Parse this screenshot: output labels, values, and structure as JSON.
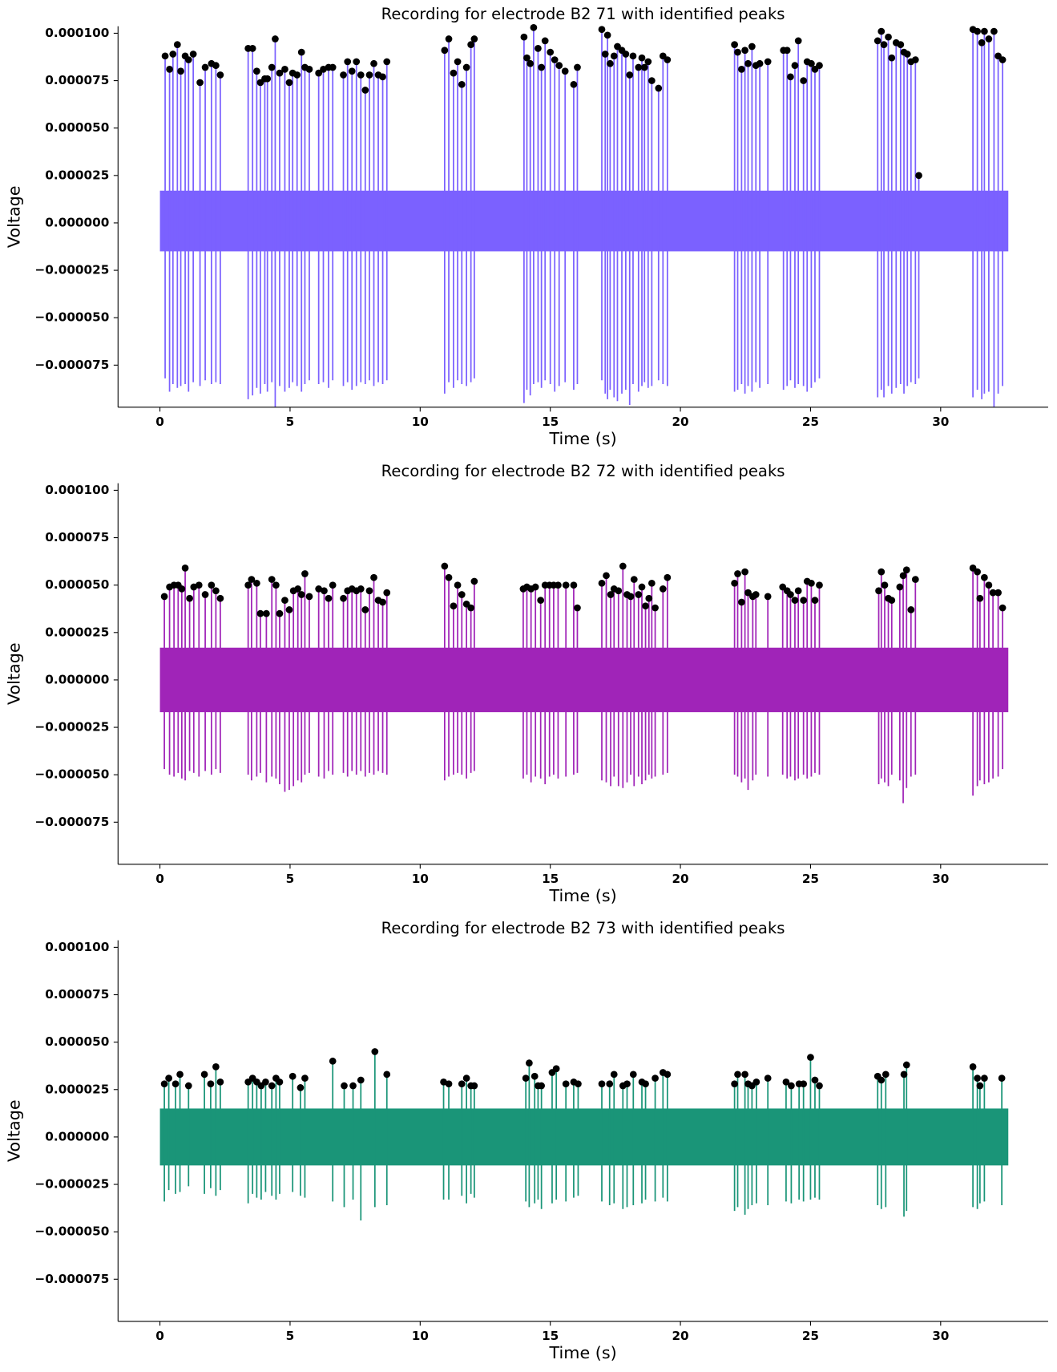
{
  "chart_data": [
    {
      "type": "line",
      "title": "Recording for electrode B2 71 with identified peaks",
      "xlabel": "Time (s)",
      "ylabel": "Voltage",
      "color": "#7b61ff",
      "marker_color": "#000000",
      "xlim": [
        -1.61,
        34.13
      ],
      "ylim": [
        -9.72e-05,
        0.0001037
      ],
      "xticks": [
        0,
        5,
        10,
        15,
        20,
        25,
        30
      ],
      "yticks": [
        {
          "value": -7.5e-05,
          "label": "−0.000075"
        },
        {
          "value": -5e-05,
          "label": "−0.000050"
        },
        {
          "value": -2.5e-05,
          "label": "−0.000025"
        },
        {
          "value": 0,
          "label": "0.000000"
        },
        {
          "value": 2.5e-05,
          "label": "0.000025"
        },
        {
          "value": 5e-05,
          "label": "0.000050"
        },
        {
          "value": 7.5e-05,
          "label": "0.000075"
        },
        {
          "value": 0.0001,
          "label": "0.000100"
        }
      ],
      "time_span": [
        0,
        32.6
      ],
      "noise_range": [
        -1.5e-05,
        1.7e-05
      ],
      "x": [
        0.2,
        0.37,
        0.5,
        0.67,
        0.8,
        0.97,
        1.1,
        1.28,
        1.54,
        1.74,
        1.98,
        2.15,
        2.32,
        3.39,
        3.56,
        3.72,
        3.86,
        4.03,
        4.13,
        4.3,
        4.43,
        4.6,
        4.8,
        4.97,
        5.1,
        5.27,
        5.44,
        5.57,
        5.74,
        6.1,
        6.28,
        6.48,
        6.64,
        7.05,
        7.21,
        7.38,
        7.55,
        7.72,
        7.89,
        8.05,
        8.22,
        8.39,
        8.56,
        8.72,
        10.94,
        11.1,
        11.28,
        11.44,
        11.6,
        11.78,
        11.95,
        12.08,
        13.99,
        14.1,
        14.23,
        14.36,
        14.53,
        14.66,
        14.8,
        15.0,
        15.17,
        15.34,
        15.57,
        15.9,
        16.04,
        16.98,
        17.11,
        17.2,
        17.3,
        17.45,
        17.58,
        17.75,
        17.9,
        18.05,
        18.18,
        18.39,
        18.52,
        18.62,
        18.76,
        18.9,
        19.16,
        19.33,
        19.5,
        22.08,
        22.2,
        22.35,
        22.48,
        22.6,
        22.75,
        22.9,
        23.05,
        23.36,
        23.96,
        24.1,
        24.23,
        24.4,
        24.53,
        24.73,
        24.87,
        25.03,
        25.17,
        25.34,
        27.58,
        27.72,
        27.82,
        27.99,
        28.12,
        28.29,
        28.46,
        28.59,
        28.72,
        28.86,
        29.03,
        29.16,
        31.24,
        31.41,
        31.58,
        31.68,
        31.85,
        32.05,
        32.21,
        32.38
      ],
      "values": [
        8.8e-05,
        8.1e-05,
        8.9e-05,
        9.4e-05,
        8e-05,
        8.8e-05,
        8.6e-05,
        8.9e-05,
        7.4e-05,
        8.2e-05,
        8.4e-05,
        8.3e-05,
        7.8e-05,
        9.2e-05,
        9.2e-05,
        8e-05,
        7.4e-05,
        7.6e-05,
        7.6e-05,
        8.2e-05,
        9.7e-05,
        7.9e-05,
        8.1e-05,
        7.4e-05,
        7.9e-05,
        7.8e-05,
        9e-05,
        8.2e-05,
        8.1e-05,
        7.9e-05,
        8.1e-05,
        8.2e-05,
        8.2e-05,
        7.8e-05,
        8.5e-05,
        8e-05,
        8.5e-05,
        7.8e-05,
        7e-05,
        7.8e-05,
        8.4e-05,
        7.8e-05,
        7.7e-05,
        8.5e-05,
        9.1e-05,
        9.7e-05,
        7.9e-05,
        8.5e-05,
        7.3e-05,
        8.2e-05,
        9.4e-05,
        9.7e-05,
        9.8e-05,
        8.7e-05,
        8.4e-05,
        0.000103,
        9.2e-05,
        8.2e-05,
        9.6e-05,
        9e-05,
        8.6e-05,
        8.3e-05,
        8e-05,
        7.3e-05,
        8.2e-05,
        0.000102,
        8.9e-05,
        9.9e-05,
        8.4e-05,
        8.8e-05,
        9.3e-05,
        9.1e-05,
        8.9e-05,
        7.8e-05,
        8.8e-05,
        8.2e-05,
        8.7e-05,
        8.2e-05,
        8.5e-05,
        7.5e-05,
        7.1e-05,
        8.8e-05,
        8.6e-05,
        9.4e-05,
        9e-05,
        8.1e-05,
        9.1e-05,
        8.4e-05,
        9.3e-05,
        8.3e-05,
        8.4e-05,
        8.5e-05,
        9.1e-05,
        9.1e-05,
        7.7e-05,
        8.3e-05,
        9.6e-05,
        7.5e-05,
        8.5e-05,
        8.4e-05,
        8.1e-05,
        8.3e-05,
        9.6e-05,
        0.000101,
        9.4e-05,
        9.8e-05,
        8.7e-05,
        9.5e-05,
        9.4e-05,
        9e-05,
        8.9e-05,
        8.5e-05,
        8.6e-05,
        2.5e-05,
        0.000102,
        0.000101,
        9.5e-05,
        0.000101,
        9.7e-05,
        0.000101,
        8.8e-05,
        8.6e-05
      ],
      "troughs": [
        -8.2e-05,
        -8.9e-05,
        -8.5e-05,
        -8.7e-05,
        -8.6e-05,
        -8.5e-05,
        -8.9e-05,
        -8.4e-05,
        -8.6e-05,
        -8.3e-05,
        -8.5e-05,
        -8.4e-05,
        -8.5e-05,
        -9.3e-05,
        -9.1e-05,
        -8.7e-05,
        -9e-05,
        -8.5e-05,
        -8.9e-05,
        -8.4e-05,
        -9.7e-05,
        -8.6e-05,
        -8.9e-05,
        -8.7e-05,
        -8.4e-05,
        -8.6e-05,
        -8.9e-05,
        -8.5e-05,
        -8.3e-05,
        -8.5e-05,
        -8.4e-05,
        -8.7e-05,
        -8.3e-05,
        -8.6e-05,
        -8.4e-05,
        -8.8e-05,
        -8.6e-05,
        -8.4e-05,
        -8.5e-05,
        -8.3e-05,
        -8.6e-05,
        -8.4e-05,
        -8.5e-05,
        -8.3e-05,
        -9e-05,
        -8.4e-05,
        -8.7e-05,
        -8.3e-05,
        -8.5e-05,
        -8.6e-05,
        -8.4e-05,
        -8.2e-05,
        -9.5e-05,
        -8.8e-05,
        -9.1e-05,
        -8.5e-05,
        -8.4e-05,
        -8.7e-05,
        -8.3e-05,
        -8.5e-05,
        -8.9e-05,
        -8.6e-05,
        -8.4e-05,
        -8.8e-05,
        -8.5e-05,
        -8.3e-05,
        -9e-05,
        -9.3e-05,
        -8.8e-05,
        -9.2e-05,
        -9.4e-05,
        -9e-05,
        -8.8e-05,
        -9.6e-05,
        -8.5e-05,
        -8.9e-05,
        -8.6e-05,
        -8.4e-05,
        -8.7e-05,
        -8.6e-05,
        -8.3e-05,
        -8.5e-05,
        -8.6e-05,
        -8.9e-05,
        -8.8e-05,
        -8.5e-05,
        -9e-05,
        -8.6e-05,
        -8.9e-05,
        -8.4e-05,
        -8.7e-05,
        -8.5e-05,
        -8.8e-05,
        -8.6e-05,
        -8.3e-05,
        -8.7e-05,
        -8.5e-05,
        -8.6e-05,
        -8.9e-05,
        -8.7e-05,
        -8.4e-05,
        -8.2e-05,
        -9.2e-05,
        -8.8e-05,
        -9.2e-05,
        -8.6e-05,
        -9e-05,
        -8.7e-05,
        -8.5e-05,
        -9e-05,
        -8.6e-05,
        -8.4e-05,
        -8.5e-05,
        -8.2e-05,
        -9.2e-05,
        -8.8e-05,
        -9.3e-05,
        -9e-05,
        -8.9e-05,
        -9.7e-05,
        -9e-05,
        -8.6e-05
      ]
    },
    {
      "type": "line",
      "title": "Recording for electrode B2 72 with identified peaks",
      "xlabel": "Time (s)",
      "ylabel": "Voltage",
      "color": "#a024b8",
      "marker_color": "#000000",
      "xlim": [
        -1.61,
        34.13
      ],
      "ylim": [
        -9.72e-05,
        0.0001037
      ],
      "xticks": [
        0,
        5,
        10,
        15,
        20,
        25,
        30
      ],
      "yticks": [
        {
          "value": -7.5e-05,
          "label": "−0.000075"
        },
        {
          "value": -5e-05,
          "label": "−0.000050"
        },
        {
          "value": -2.5e-05,
          "label": "−0.000025"
        },
        {
          "value": 0,
          "label": "0.000000"
        },
        {
          "value": 2.5e-05,
          "label": "0.000025"
        },
        {
          "value": 5e-05,
          "label": "0.000050"
        },
        {
          "value": 7.5e-05,
          "label": "0.000075"
        },
        {
          "value": 0.0001,
          "label": "0.000100"
        }
      ],
      "time_span": [
        0,
        32.6
      ],
      "noise_range": [
        -1.7e-05,
        1.7e-05
      ],
      "x": [
        0.17,
        0.37,
        0.54,
        0.7,
        0.84,
        0.97,
        1.14,
        1.3,
        1.5,
        1.74,
        1.98,
        2.15,
        2.32,
        3.39,
        3.52,
        3.72,
        3.86,
        4.09,
        4.3,
        4.46,
        4.6,
        4.8,
        4.97,
        5.13,
        5.3,
        5.44,
        5.57,
        5.74,
        6.1,
        6.31,
        6.48,
        6.64,
        7.05,
        7.21,
        7.38,
        7.55,
        7.72,
        7.89,
        8.05,
        8.22,
        8.39,
        8.56,
        8.72,
        10.94,
        11.1,
        11.28,
        11.44,
        11.6,
        11.78,
        11.95,
        12.08,
        13.96,
        14.1,
        14.26,
        14.43,
        14.63,
        14.8,
        14.97,
        15.13,
        15.3,
        15.6,
        15.9,
        16.04,
        16.98,
        17.15,
        17.32,
        17.45,
        17.62,
        17.79,
        17.95,
        18.09,
        18.22,
        18.39,
        18.52,
        18.66,
        18.79,
        18.9,
        19.03,
        19.33,
        19.5,
        22.08,
        22.2,
        22.35,
        22.48,
        22.6,
        22.78,
        22.9,
        23.36,
        23.93,
        24.1,
        24.23,
        24.4,
        24.53,
        24.73,
        24.87,
        25.03,
        25.17,
        25.34,
        27.62,
        27.72,
        27.85,
        27.99,
        28.12,
        28.43,
        28.56,
        28.69,
        28.86,
        29.03,
        31.24,
        31.41,
        31.51,
        31.68,
        31.85,
        32.01,
        32.21,
        32.38
      ],
      "values": [
        4.4e-05,
        4.9e-05,
        5e-05,
        5e-05,
        4.8e-05,
        5.9e-05,
        4.3e-05,
        4.9e-05,
        5e-05,
        4.5e-05,
        5e-05,
        4.7e-05,
        4.3e-05,
        5e-05,
        5.3e-05,
        5.1e-05,
        3.5e-05,
        3.5e-05,
        5.3e-05,
        5e-05,
        3.5e-05,
        4.2e-05,
        3.7e-05,
        4.7e-05,
        4.8e-05,
        4.5e-05,
        5.6e-05,
        4.4e-05,
        4.8e-05,
        4.7e-05,
        4.3e-05,
        5e-05,
        4.3e-05,
        4.7e-05,
        4.8e-05,
        4.7e-05,
        4.8e-05,
        3.7e-05,
        4.7e-05,
        5.4e-05,
        4.2e-05,
        4.1e-05,
        4.6e-05,
        6e-05,
        5.4e-05,
        3.9e-05,
        5e-05,
        4.5e-05,
        4e-05,
        3.8e-05,
        5.2e-05,
        4.8e-05,
        4.9e-05,
        4.8e-05,
        4.9e-05,
        4.2e-05,
        5e-05,
        5e-05,
        5e-05,
        5e-05,
        5e-05,
        5e-05,
        3.8e-05,
        5.1e-05,
        5.5e-05,
        4.5e-05,
        4.8e-05,
        4.7e-05,
        6e-05,
        4.5e-05,
        4.4e-05,
        5.3e-05,
        4.5e-05,
        4.9e-05,
        3.9e-05,
        4.3e-05,
        5.1e-05,
        3.8e-05,
        4.8e-05,
        5.4e-05,
        5.1e-05,
        5.6e-05,
        4.1e-05,
        5.7e-05,
        4.6e-05,
        4.4e-05,
        4.5e-05,
        4.4e-05,
        4.9e-05,
        4.7e-05,
        4.5e-05,
        4.2e-05,
        4.7e-05,
        4.2e-05,
        5.2e-05,
        5.1e-05,
        4.2e-05,
        5e-05,
        4.7e-05,
        5.7e-05,
        5e-05,
        4.3e-05,
        4.2e-05,
        4.9e-05,
        5.5e-05,
        5.8e-05,
        3.7e-05,
        5.3e-05,
        5.9e-05,
        5.7e-05,
        4.3e-05,
        5.4e-05,
        5e-05,
        4.6e-05,
        4.6e-05,
        3.8e-05
      ],
      "troughs": [
        -4.7e-05,
        -5e-05,
        -5.1e-05,
        -4.9e-05,
        -5.2e-05,
        -5.3e-05,
        -4.8e-05,
        -4.9e-05,
        -5.1e-05,
        -4.8e-05,
        -5e-05,
        -4.7e-05,
        -4.9e-05,
        -5e-05,
        -5.3e-05,
        -5.1e-05,
        -4.9e-05,
        -5.4e-05,
        -5.1e-05,
        -5.2e-05,
        -5.5e-05,
        -5.9e-05,
        -5.8e-05,
        -5.6e-05,
        -5.3e-05,
        -5.4e-05,
        -5e-05,
        -4.9e-05,
        -5.1e-05,
        -5.2e-05,
        -4.8e-05,
        -5e-05,
        -4.9e-05,
        -5.1e-05,
        -4.8e-05,
        -5e-05,
        -4.8e-05,
        -5.1e-05,
        -4.9e-05,
        -5e-05,
        -4.8e-05,
        -4.9e-05,
        -5e-05,
        -5.3e-05,
        -5.1e-05,
        -5e-05,
        -4.9e-05,
        -5e-05,
        -5.2e-05,
        -4.9e-05,
        -4.8e-05,
        -5.2e-05,
        -5e-05,
        -5.4e-05,
        -5.1e-05,
        -5.2e-05,
        -5.5e-05,
        -5.1e-05,
        -5e-05,
        -5.2e-05,
        -5.1e-05,
        -5e-05,
        -4.9e-05,
        -5.3e-05,
        -5.4e-05,
        -5.6e-05,
        -5.1e-05,
        -5.6e-05,
        -5.7e-05,
        -5.4e-05,
        -5e-05,
        -5.6e-05,
        -5.1e-05,
        -5.5e-05,
        -5.3e-05,
        -5e-05,
        -5.2e-05,
        -5.1e-05,
        -5e-05,
        -4.9e-05,
        -5e-05,
        -5.1e-05,
        -5.4e-05,
        -5.2e-05,
        -5.8e-05,
        -5.3e-05,
        -5e-05,
        -5.1e-05,
        -5e-05,
        -5.2e-05,
        -5.1e-05,
        -5.3e-05,
        -5.2e-05,
        -5e-05,
        -5.2e-05,
        -5.1e-05,
        -4.9e-05,
        -5e-05,
        -5.5e-05,
        -5.2e-05,
        -5.4e-05,
        -5.6e-05,
        -5e-05,
        -5.3e-05,
        -6.5e-05,
        -5.7e-05,
        -5.1e-05,
        -5e-05,
        -6.1e-05,
        -5.6e-05,
        -5.3e-05,
        -5.5e-05,
        -5.4e-05,
        -5.2e-05,
        -5.1e-05,
        -4.7e-05
      ]
    },
    {
      "type": "line",
      "title": "Recording for electrode B2 73 with identified peaks",
      "xlabel": "Time (s)",
      "ylabel": "Voltage",
      "color": "#1a9578",
      "marker_color": "#000000",
      "xlim": [
        -1.61,
        34.13
      ],
      "ylim": [
        -9.72e-05,
        0.0001037
      ],
      "xticks": [
        0,
        5,
        10,
        15,
        20,
        25,
        30
      ],
      "yticks": [
        {
          "value": -7.5e-05,
          "label": "−0.000075"
        },
        {
          "value": -5e-05,
          "label": "−0.000050"
        },
        {
          "value": -2.5e-05,
          "label": "−0.000025"
        },
        {
          "value": 0,
          "label": "0.000000"
        },
        {
          "value": 2.5e-05,
          "label": "0.000025"
        },
        {
          "value": 5e-05,
          "label": "0.000050"
        },
        {
          "value": 7.5e-05,
          "label": "0.000075"
        },
        {
          "value": 0.0001,
          "label": "0.000100"
        }
      ],
      "time_span": [
        0,
        32.6
      ],
      "noise_range": [
        -1.5e-05,
        1.5e-05
      ],
      "x": [
        0.17,
        0.34,
        0.6,
        0.77,
        1.1,
        1.71,
        1.95,
        2.15,
        2.32,
        3.39,
        3.56,
        3.72,
        3.89,
        4.06,
        4.3,
        4.46,
        4.6,
        5.1,
        5.4,
        5.57,
        6.64,
        7.08,
        7.42,
        7.72,
        8.26,
        8.72,
        10.9,
        11.1,
        11.6,
        11.78,
        11.95,
        12.08,
        14.06,
        14.19,
        14.4,
        14.53,
        14.66,
        15.07,
        15.23,
        15.6,
        15.9,
        16.07,
        16.98,
        17.28,
        17.45,
        17.79,
        17.95,
        18.19,
        18.52,
        18.66,
        19.03,
        19.33,
        19.5,
        22.08,
        22.2,
        22.48,
        22.6,
        22.75,
        22.92,
        23.36,
        24.06,
        24.26,
        24.56,
        24.73,
        25.0,
        25.17,
        25.34,
        27.58,
        27.72,
        27.89,
        28.59,
        28.69,
        31.24,
        31.41,
        31.51,
        31.68,
        32.35
      ],
      "values": [
        2.8e-05,
        3.1e-05,
        2.8e-05,
        3.3e-05,
        2.7e-05,
        3.3e-05,
        2.8e-05,
        3.7e-05,
        2.9e-05,
        2.9e-05,
        3.1e-05,
        2.9e-05,
        2.7e-05,
        2.9e-05,
        2.7e-05,
        3.1e-05,
        2.9e-05,
        3.2e-05,
        2.6e-05,
        3.1e-05,
        4e-05,
        2.7e-05,
        2.7e-05,
        3e-05,
        4.5e-05,
        3.3e-05,
        2.9e-05,
        2.8e-05,
        2.8e-05,
        3.1e-05,
        2.7e-05,
        2.7e-05,
        3.1e-05,
        3.9e-05,
        3.2e-05,
        2.7e-05,
        2.7e-05,
        3.4e-05,
        3.6e-05,
        2.8e-05,
        2.9e-05,
        2.8e-05,
        2.8e-05,
        2.8e-05,
        3.3e-05,
        2.7e-05,
        2.8e-05,
        3.3e-05,
        2.9e-05,
        2.8e-05,
        3.1e-05,
        3.4e-05,
        3.3e-05,
        2.8e-05,
        3.3e-05,
        3.3e-05,
        2.8e-05,
        2.7e-05,
        2.9e-05,
        3.1e-05,
        2.9e-05,
        2.7e-05,
        2.8e-05,
        2.8e-05,
        4.2e-05,
        3e-05,
        2.7e-05,
        3.2e-05,
        3e-05,
        3.3e-05,
        3.3e-05,
        3.8e-05,
        3.7e-05,
        3.1e-05,
        2.7e-05,
        3.1e-05,
        3.1e-05
      ],
      "troughs": [
        -3.4e-05,
        -2.8e-05,
        -3e-05,
        -2.9e-05,
        -2.6e-05,
        -3e-05,
        -2.7e-05,
        -3.1e-05,
        -2.8e-05,
        -3.5e-05,
        -3e-05,
        -3.2e-05,
        -3.3e-05,
        -2.9e-05,
        -3.1e-05,
        -3.3e-05,
        -3e-05,
        -2.9e-05,
        -3.1e-05,
        -3.2e-05,
        -3.4e-05,
        -3.7e-05,
        -3.3e-05,
        -4.4e-05,
        -3.7e-05,
        -3.6e-05,
        -3.3e-05,
        -3.3e-05,
        -3.1e-05,
        -3.5e-05,
        -3e-05,
        -3.2e-05,
        -3.4e-05,
        -3.7e-05,
        -3.5e-05,
        -3.3e-05,
        -3.8e-05,
        -3.5e-05,
        -3.3e-05,
        -3.4e-05,
        -3.2e-05,
        -3.1e-05,
        -3.4e-05,
        -3.6e-05,
        -3.5e-05,
        -3.8e-05,
        -3.7e-05,
        -3.6e-05,
        -3.5e-05,
        -3.3e-05,
        -3.4e-05,
        -3.2e-05,
        -3.4e-05,
        -3.9e-05,
        -3.7e-05,
        -4.1e-05,
        -3.8e-05,
        -3.6e-05,
        -3.5e-05,
        -3.6e-05,
        -3.4e-05,
        -3.5e-05,
        -3.3e-05,
        -3.4e-05,
        -3.3e-05,
        -3.2e-05,
        -3.3e-05,
        -3.6e-05,
        -3.8e-05,
        -3.7e-05,
        -4.2e-05,
        -3.9e-05,
        -3.7e-05,
        -3.8e-05,
        -3.5e-05,
        -3.4e-05,
        -3.6e-05
      ]
    }
  ]
}
